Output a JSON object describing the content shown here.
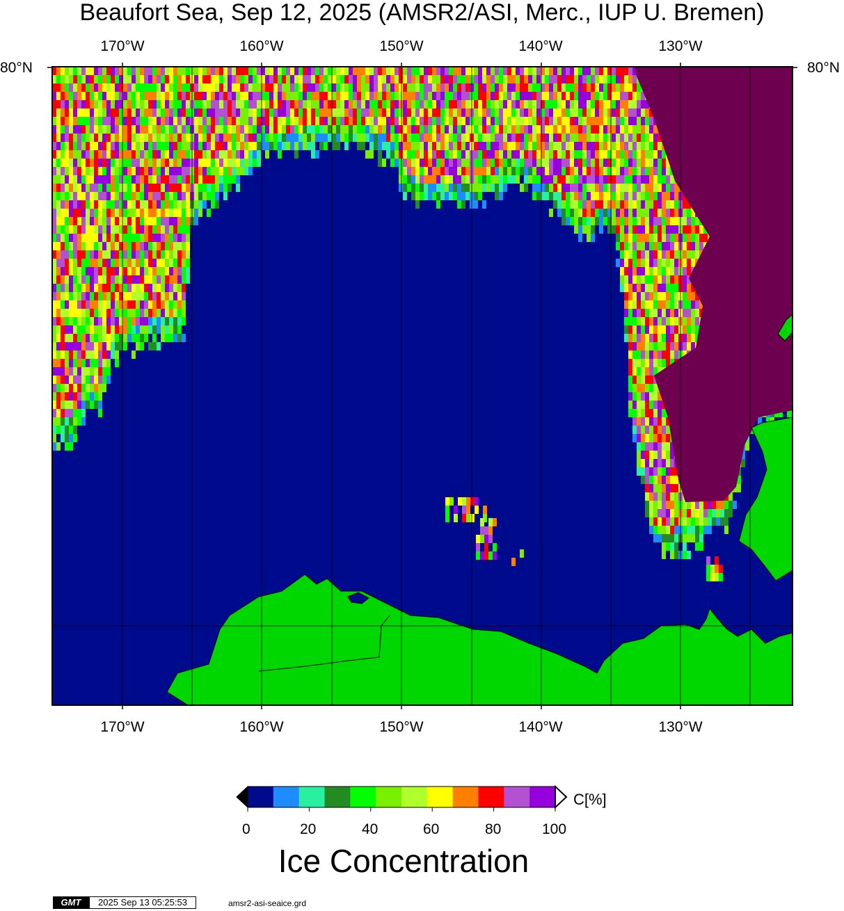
{
  "title": "Beaufort Sea, Sep 12, 2025 (AMSR2/ASI, Merc., IUP U. Bremen)",
  "map": {
    "longitude_labels": [
      "170°W",
      "160°W",
      "150°W",
      "140°W",
      "130°W"
    ],
    "latitude_label": "80°N",
    "lon_range": [
      "175°W",
      "122°W"
    ],
    "colors": {
      "ocean": "#000a8c",
      "land": "#00d700",
      "coast": "#000000"
    }
  },
  "colorbar": {
    "unit": "C[%]",
    "title": "Ice Concentration",
    "tick_labels": [
      "0",
      "20",
      "40",
      "60",
      "80",
      "100"
    ],
    "colors": [
      "#000a8c",
      "#1e8cff",
      "#28f0a0",
      "#228b22",
      "#00ff00",
      "#78f000",
      "#afff2d",
      "#ffff00",
      "#ff8000",
      "#ff0000",
      "#b450d2",
      "#9600dc"
    ],
    "over_color": "#ffffff",
    "under_color": "#000000"
  },
  "footer": {
    "logo": "GMT",
    "timestamp": "2025 Sep 13 05:25:53",
    "filename": "amsr2-asi-seaice.grd"
  }
}
